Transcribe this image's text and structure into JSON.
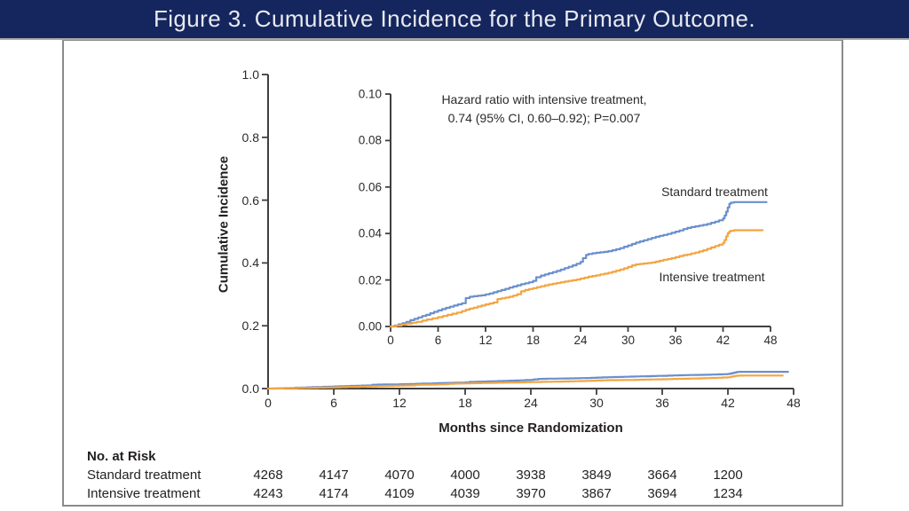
{
  "title": "Figure 3. Cumulative Incidence for the Primary Outcome.",
  "colors": {
    "titlebar_bg": "#15265e",
    "titlebar_text": "#e8eaf0",
    "axis": "#3f3f3f",
    "text": "#231f20",
    "standard": "#6a8fce",
    "intensive": "#f3a541",
    "box_border": "#8b8b8b"
  },
  "chart_data": {
    "type": "line",
    "title": "Cumulative Incidence for the Primary Outcome",
    "xlabel": "Months since Randomization",
    "ylabel": "Cumulative Incidence",
    "main_axis": {
      "xlim": [
        0,
        48
      ],
      "ylim": [
        0,
        1.0
      ],
      "xticks": [
        0,
        6,
        12,
        18,
        24,
        30,
        36,
        42,
        48
      ],
      "ytick_labels": [
        "0.0",
        "0.2",
        "0.4",
        "0.6",
        "0.8",
        "1.0"
      ]
    },
    "inset_axis": {
      "xlim": [
        0,
        48
      ],
      "ylim": [
        0,
        0.1
      ],
      "xticks": [
        0,
        6,
        12,
        18,
        24,
        30,
        36,
        42,
        48
      ],
      "ytick_labels": [
        "0.00",
        "0.02",
        "0.04",
        "0.06",
        "0.08",
        "0.10"
      ]
    },
    "annotation": {
      "line1": "Hazard ratio with intensive treatment,",
      "line2": "0.74 (95% CI, 0.60–0.92); P=0.007"
    },
    "legend_position": "inline-right",
    "grid": false,
    "series": [
      {
        "name": "Standard treatment",
        "color_key": "standard",
        "points": [
          [
            0,
            0
          ],
          [
            0.5,
            0.0004
          ],
          [
            1,
            0.0009
          ],
          [
            1.5,
            0.0014
          ],
          [
            2,
            0.002
          ],
          [
            2.5,
            0.0027
          ],
          [
            3,
            0.0033
          ],
          [
            3.5,
            0.0039
          ],
          [
            4,
            0.0045
          ],
          [
            4.5,
            0.005
          ],
          [
            5,
            0.0057
          ],
          [
            5.5,
            0.0063
          ],
          [
            6,
            0.0069
          ],
          [
            6.5,
            0.0075
          ],
          [
            7,
            0.008
          ],
          [
            7.5,
            0.0085
          ],
          [
            8,
            0.009
          ],
          [
            8.5,
            0.0095
          ],
          [
            9,
            0.01
          ],
          [
            9.5,
            0.0122
          ],
          [
            10,
            0.0128
          ],
          [
            10.5,
            0.013
          ],
          [
            11,
            0.0132
          ],
          [
            11.5,
            0.0134
          ],
          [
            12,
            0.0138
          ],
          [
            12.5,
            0.0142
          ],
          [
            13,
            0.0147
          ],
          [
            13.5,
            0.0152
          ],
          [
            14,
            0.0157
          ],
          [
            14.5,
            0.0162
          ],
          [
            15,
            0.0167
          ],
          [
            15.5,
            0.0172
          ],
          [
            16,
            0.0177
          ],
          [
            16.5,
            0.0182
          ],
          [
            17,
            0.0186
          ],
          [
            17.5,
            0.019
          ],
          [
            18,
            0.0196
          ],
          [
            18.4,
            0.0212
          ],
          [
            19,
            0.0219
          ],
          [
            19.5,
            0.0224
          ],
          [
            20,
            0.0229
          ],
          [
            20.5,
            0.0234
          ],
          [
            21,
            0.0239
          ],
          [
            21.5,
            0.0245
          ],
          [
            22,
            0.0251
          ],
          [
            22.5,
            0.0257
          ],
          [
            23,
            0.0263
          ],
          [
            23.5,
            0.027
          ],
          [
            24,
            0.0278
          ],
          [
            24.3,
            0.0294
          ],
          [
            24.7,
            0.0308
          ],
          [
            25,
            0.0312
          ],
          [
            25.5,
            0.0315
          ],
          [
            26,
            0.0317
          ],
          [
            26.5,
            0.0319
          ],
          [
            27,
            0.0321
          ],
          [
            27.5,
            0.0324
          ],
          [
            28,
            0.0328
          ],
          [
            28.5,
            0.0332
          ],
          [
            29,
            0.0337
          ],
          [
            29.5,
            0.0343
          ],
          [
            30,
            0.0349
          ],
          [
            30.5,
            0.0355
          ],
          [
            31,
            0.0361
          ],
          [
            31.5,
            0.0366
          ],
          [
            32,
            0.0371
          ],
          [
            32.5,
            0.0376
          ],
          [
            33,
            0.0381
          ],
          [
            33.5,
            0.0386
          ],
          [
            34,
            0.039
          ],
          [
            34.5,
            0.0394
          ],
          [
            35,
            0.0398
          ],
          [
            35.5,
            0.0403
          ],
          [
            36,
            0.0408
          ],
          [
            36.5,
            0.0413
          ],
          [
            37,
            0.0419
          ],
          [
            37.5,
            0.0424
          ],
          [
            38,
            0.0428
          ],
          [
            38.5,
            0.0431
          ],
          [
            39,
            0.0434
          ],
          [
            39.5,
            0.0437
          ],
          [
            40,
            0.0441
          ],
          [
            40.5,
            0.0446
          ],
          [
            41,
            0.0451
          ],
          [
            41.5,
            0.0457
          ],
          [
            42,
            0.0465
          ],
          [
            42.2,
            0.0478
          ],
          [
            42.4,
            0.0494
          ],
          [
            42.6,
            0.0512
          ],
          [
            42.8,
            0.0528
          ],
          [
            43,
            0.0533
          ],
          [
            43.4,
            0.0535
          ],
          [
            47.5,
            0.0535
          ]
        ]
      },
      {
        "name": "Intensive treatment",
        "color_key": "intensive",
        "points": [
          [
            0,
            0
          ],
          [
            0.7,
            0.0004
          ],
          [
            1.4,
            0.0008
          ],
          [
            2,
            0.0012
          ],
          [
            2.7,
            0.0016
          ],
          [
            3.3,
            0.002
          ],
          [
            4,
            0.0025
          ],
          [
            4.6,
            0.003
          ],
          [
            5.3,
            0.0035
          ],
          [
            6,
            0.004
          ],
          [
            6.6,
            0.0045
          ],
          [
            7.2,
            0.005
          ],
          [
            7.8,
            0.0055
          ],
          [
            8.4,
            0.006
          ],
          [
            9,
            0.0066
          ],
          [
            9.5,
            0.0072
          ],
          [
            10,
            0.0077
          ],
          [
            10.5,
            0.0081
          ],
          [
            11,
            0.0086
          ],
          [
            11.5,
            0.009
          ],
          [
            12,
            0.0095
          ],
          [
            12.5,
            0.0099
          ],
          [
            13,
            0.0103
          ],
          [
            13.5,
            0.0118
          ],
          [
            14,
            0.0121
          ],
          [
            14.5,
            0.0124
          ],
          [
            15,
            0.0128
          ],
          [
            15.5,
            0.0133
          ],
          [
            16,
            0.0139
          ],
          [
            16.5,
            0.0151
          ],
          [
            17,
            0.0157
          ],
          [
            17.5,
            0.0161
          ],
          [
            18,
            0.0165
          ],
          [
            18.5,
            0.0169
          ],
          [
            19,
            0.0173
          ],
          [
            19.5,
            0.0177
          ],
          [
            20,
            0.0181
          ],
          [
            20.5,
            0.0184
          ],
          [
            21,
            0.0187
          ],
          [
            21.5,
            0.019
          ],
          [
            22,
            0.0193
          ],
          [
            22.5,
            0.0196
          ],
          [
            23,
            0.0199
          ],
          [
            23.5,
            0.0202
          ],
          [
            24,
            0.0206
          ],
          [
            24.5,
            0.021
          ],
          [
            25,
            0.0214
          ],
          [
            25.5,
            0.0217
          ],
          [
            26,
            0.022
          ],
          [
            26.5,
            0.0224
          ],
          [
            27,
            0.0227
          ],
          [
            27.5,
            0.0231
          ],
          [
            28,
            0.0235
          ],
          [
            28.5,
            0.024
          ],
          [
            29,
            0.0245
          ],
          [
            29.5,
            0.025
          ],
          [
            30,
            0.0256
          ],
          [
            30.5,
            0.0263
          ],
          [
            31,
            0.0267
          ],
          [
            31.5,
            0.0269
          ],
          [
            32,
            0.0271
          ],
          [
            32.5,
            0.0273
          ],
          [
            33,
            0.0275
          ],
          [
            33.5,
            0.0279
          ],
          [
            34,
            0.0283
          ],
          [
            34.5,
            0.0287
          ],
          [
            35,
            0.029
          ],
          [
            35.5,
            0.0294
          ],
          [
            36,
            0.0298
          ],
          [
            36.5,
            0.0303
          ],
          [
            37,
            0.0307
          ],
          [
            37.5,
            0.031
          ],
          [
            38,
            0.0314
          ],
          [
            38.5,
            0.0318
          ],
          [
            39,
            0.0323
          ],
          [
            39.5,
            0.0328
          ],
          [
            40,
            0.0334
          ],
          [
            40.5,
            0.034
          ],
          [
            41,
            0.0346
          ],
          [
            41.5,
            0.0352
          ],
          [
            42,
            0.036
          ],
          [
            42.2,
            0.0372
          ],
          [
            42.4,
            0.0388
          ],
          [
            42.6,
            0.0401
          ],
          [
            42.8,
            0.0409
          ],
          [
            43,
            0.0412
          ],
          [
            43.4,
            0.0414
          ],
          [
            47,
            0.0414
          ]
        ]
      }
    ]
  },
  "risk_table": {
    "header": "No. at Risk",
    "rows": [
      {
        "label": "Standard treatment",
        "values": [
          "4268",
          "4147",
          "4070",
          "4000",
          "3938",
          "3849",
          "3664",
          "1200"
        ]
      },
      {
        "label": "Intensive treatment",
        "values": [
          "4243",
          "4174",
          "4109",
          "4039",
          "3970",
          "3867",
          "3694",
          "1234"
        ]
      }
    ]
  }
}
